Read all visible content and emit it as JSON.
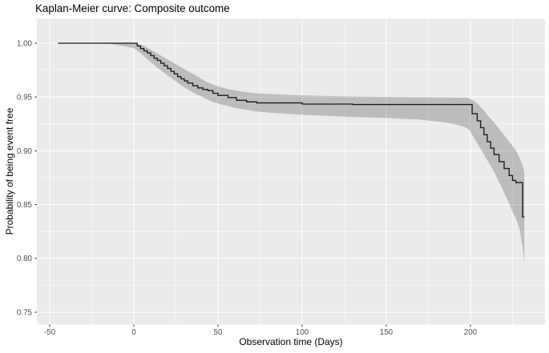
{
  "chart_data": {
    "type": "line",
    "subtype": "kaplan-meier-step-with-ci-band",
    "title": "Kaplan-Meier curve: Composite outcome",
    "xlabel": "Observation time (Days)",
    "ylabel": "Probability of being event free",
    "legend": false,
    "grid": true,
    "xlim": [
      -57.6,
      244.3
    ],
    "ylim": [
      0.7385,
      1.0227
    ],
    "x_ticks": [
      -50,
      0,
      50,
      100,
      150,
      200
    ],
    "x_tick_labels": [
      "-50",
      "0",
      "50",
      "100",
      "150",
      "200"
    ],
    "x_minor_ticks": [
      -25,
      25,
      75,
      125,
      175,
      225
    ],
    "y_ticks": [
      0.75,
      0.8,
      0.85,
      0.9,
      0.95,
      1.0
    ],
    "y_tick_labels": [
      "0.75",
      "0.80",
      "0.85",
      "0.90",
      "0.95",
      "1.00"
    ],
    "y_minor_ticks": [
      0.775,
      0.825,
      0.875,
      0.925,
      0.975
    ],
    "colors": {
      "panel_bg": "#EBEBEB",
      "grid": "#FFFFFF",
      "km_line": "#1a1a1a",
      "ci_band": "rgba(0,0,0,0.20)",
      "tick_mark": "#333333",
      "tick_text": "#4d4d4d"
    },
    "series": [
      {
        "name": "KM estimate (Composite outcome)",
        "type": "step",
        "points": [
          [
            -45,
            1.0
          ],
          [
            0,
            1.0
          ],
          [
            2,
            0.9975
          ],
          [
            4,
            0.995
          ],
          [
            6,
            0.993
          ],
          [
            8,
            0.991
          ],
          [
            10,
            0.9885
          ],
          [
            12,
            0.986
          ],
          [
            14,
            0.984
          ],
          [
            16,
            0.9815
          ],
          [
            18,
            0.979
          ],
          [
            20,
            0.9765
          ],
          [
            22,
            0.974
          ],
          [
            24,
            0.9715
          ],
          [
            26,
            0.969
          ],
          [
            28,
            0.967
          ],
          [
            30,
            0.965
          ],
          [
            32,
            0.963
          ],
          [
            35,
            0.9605
          ],
          [
            38,
            0.9585
          ],
          [
            41,
            0.957
          ],
          [
            44,
            0.956
          ],
          [
            47,
            0.9535
          ],
          [
            50,
            0.9515
          ],
          [
            56,
            0.9495
          ],
          [
            61,
            0.947
          ],
          [
            67,
            0.9455
          ],
          [
            73,
            0.9445
          ],
          [
            100,
            0.9435
          ],
          [
            130,
            0.943
          ],
          [
            201,
            0.9345
          ],
          [
            204,
            0.928
          ],
          [
            206,
            0.9215
          ],
          [
            208,
            0.915
          ],
          [
            210,
            0.9085
          ],
          [
            212,
            0.9025
          ],
          [
            214,
            0.8965
          ],
          [
            217,
            0.89
          ],
          [
            220,
            0.8835
          ],
          [
            223,
            0.877
          ],
          [
            225,
            0.8725
          ],
          [
            227,
            0.8705
          ],
          [
            231,
            0.8385
          ],
          [
            232,
            0.8385
          ]
        ]
      }
    ],
    "ci_upper": [
      [
        -45,
        1.0
      ],
      [
        0,
        1.0
      ],
      [
        5,
        0.9985
      ],
      [
        10,
        0.994
      ],
      [
        15,
        0.9895
      ],
      [
        20,
        0.985
      ],
      [
        25,
        0.9805
      ],
      [
        30,
        0.976
      ],
      [
        35,
        0.9715
      ],
      [
        40,
        0.967
      ],
      [
        44,
        0.9635
      ],
      [
        48,
        0.961
      ],
      [
        52,
        0.959
      ],
      [
        56,
        0.9575
      ],
      [
        61,
        0.956
      ],
      [
        67,
        0.9545
      ],
      [
        73,
        0.9535
      ],
      [
        85,
        0.9525
      ],
      [
        100,
        0.9515
      ],
      [
        130,
        0.9505
      ],
      [
        160,
        0.95
      ],
      [
        198,
        0.9495
      ],
      [
        202,
        0.9465
      ],
      [
        205,
        0.9425
      ],
      [
        208,
        0.9375
      ],
      [
        211,
        0.9315
      ],
      [
        214,
        0.9265
      ],
      [
        217,
        0.9205
      ],
      [
        220,
        0.9145
      ],
      [
        223,
        0.9085
      ],
      [
        225,
        0.9045
      ],
      [
        227,
        0.9005
      ],
      [
        229,
        0.894
      ],
      [
        231,
        0.8865
      ],
      [
        232,
        0.88
      ]
    ],
    "ci_lower": [
      [
        -16,
        1.0
      ],
      [
        0,
        0.9955
      ],
      [
        5,
        0.9895
      ],
      [
        10,
        0.9825
      ],
      [
        15,
        0.976
      ],
      [
        20,
        0.97
      ],
      [
        25,
        0.9645
      ],
      [
        30,
        0.959
      ],
      [
        35,
        0.9545
      ],
      [
        40,
        0.9505
      ],
      [
        44,
        0.9475
      ],
      [
        48,
        0.945
      ],
      [
        52,
        0.943
      ],
      [
        56,
        0.9415
      ],
      [
        61,
        0.9395
      ],
      [
        67,
        0.938
      ],
      [
        73,
        0.9365
      ],
      [
        85,
        0.935
      ],
      [
        100,
        0.9335
      ],
      [
        115,
        0.9325
      ],
      [
        130,
        0.9315
      ],
      [
        150,
        0.9305
      ],
      [
        170,
        0.929
      ],
      [
        182,
        0.927
      ],
      [
        190,
        0.925
      ],
      [
        196,
        0.9225
      ],
      [
        199,
        0.92
      ],
      [
        202,
        0.9125
      ],
      [
        205,
        0.9045
      ],
      [
        208,
        0.8965
      ],
      [
        211,
        0.8885
      ],
      [
        214,
        0.8805
      ],
      [
        217,
        0.871
      ],
      [
        220,
        0.861
      ],
      [
        223,
        0.851
      ],
      [
        225,
        0.8435
      ],
      [
        227,
        0.837
      ],
      [
        229,
        0.8285
      ],
      [
        231,
        0.8105
      ],
      [
        232,
        0.795
      ]
    ]
  }
}
